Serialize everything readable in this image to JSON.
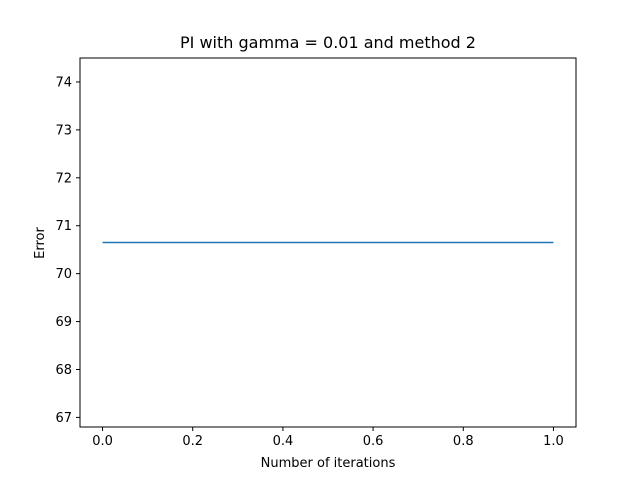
{
  "chart_data": {
    "type": "line",
    "title": "PI with gamma = 0.01 and method 2",
    "xlabel": "Number of iterations",
    "ylabel": "Error",
    "xlim": [
      -0.05,
      1.05
    ],
    "ylim": [
      66.8,
      74.5
    ],
    "xticks": [
      0.0,
      0.2,
      0.4,
      0.6,
      0.8,
      1.0
    ],
    "xtick_labels": [
      "0.0",
      "0.2",
      "0.4",
      "0.6",
      "0.8",
      "1.0"
    ],
    "yticks": [
      67,
      68,
      69,
      70,
      71,
      72,
      73,
      74
    ],
    "ytick_labels": [
      "67",
      "68",
      "69",
      "70",
      "71",
      "72",
      "73",
      "74"
    ],
    "grid": false,
    "series": [
      {
        "color": "#1f77b4",
        "x": [
          0.0,
          1.0
        ],
        "y": [
          70.65,
          70.65
        ]
      }
    ]
  }
}
